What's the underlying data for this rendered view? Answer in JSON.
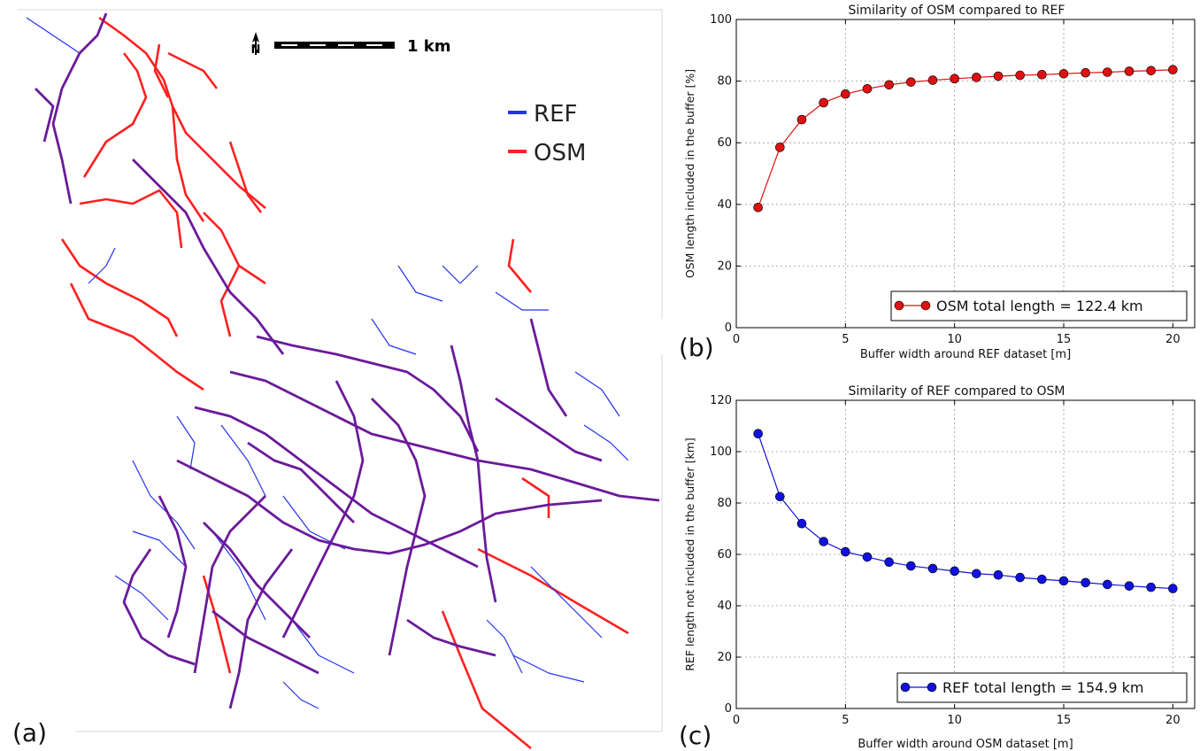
{
  "map": {
    "scale_label": "1  km",
    "north_label": "N",
    "legend": [
      {
        "label": "REF",
        "color": "#2233ee"
      },
      {
        "label": "OSM",
        "color": "#ff2020"
      }
    ],
    "panel_label": "(a)",
    "colors": {
      "ref": "#2233ee",
      "osm": "#ff2020",
      "overlap": "#6a1a9a"
    }
  },
  "chart_data": [
    {
      "type": "line",
      "title": "Similarity of OSM compared to REF",
      "xlabel": "Buffer width around REF dataset [m]",
      "ylabel": "OSM length included in the buffer [%]",
      "xlim": [
        0,
        21
      ],
      "ylim": [
        0,
        100
      ],
      "xticks": [
        0,
        5,
        10,
        15,
        20
      ],
      "yticks": [
        0,
        20,
        40,
        60,
        80,
        100
      ],
      "grid": true,
      "legend_position": "lower-right",
      "panel_label": "(b)",
      "series": [
        {
          "name": "OSM total length = 122.4 km",
          "color": "#dd1111",
          "x": [
            1,
            2,
            3,
            4,
            5,
            6,
            7,
            8,
            9,
            10,
            11,
            12,
            13,
            14,
            15,
            16,
            17,
            18,
            19,
            20
          ],
          "y": [
            39,
            58.5,
            67.5,
            73,
            75.8,
            77.5,
            78.8,
            79.7,
            80.3,
            80.8,
            81.2,
            81.6,
            81.9,
            82.1,
            82.4,
            82.7,
            82.9,
            83.2,
            83.4,
            83.7
          ]
        }
      ]
    },
    {
      "type": "line",
      "title": "Similarity of REF compared to OSM",
      "xlabel": "Buffer width around OSM dataset [m]",
      "ylabel": "REF length not included in the buffer [km]",
      "xlim": [
        0,
        21
      ],
      "ylim": [
        0,
        120
      ],
      "xticks": [
        0,
        5,
        10,
        15,
        20
      ],
      "yticks": [
        0,
        20,
        40,
        60,
        80,
        100,
        120
      ],
      "grid": true,
      "legend_position": "lower-right",
      "panel_label": "(c)",
      "series": [
        {
          "name": "REF total length = 154.9 km",
          "color": "#1111dd",
          "x": [
            1,
            2,
            3,
            4,
            5,
            6,
            7,
            8,
            9,
            10,
            11,
            12,
            13,
            14,
            15,
            16,
            17,
            18,
            19,
            20
          ],
          "y": [
            107,
            82.5,
            72,
            65,
            61,
            59,
            57,
            55.5,
            54.5,
            53.5,
            52.5,
            52,
            51,
            50.3,
            49.7,
            49,
            48.3,
            47.7,
            47.2,
            46.7
          ]
        }
      ]
    }
  ]
}
